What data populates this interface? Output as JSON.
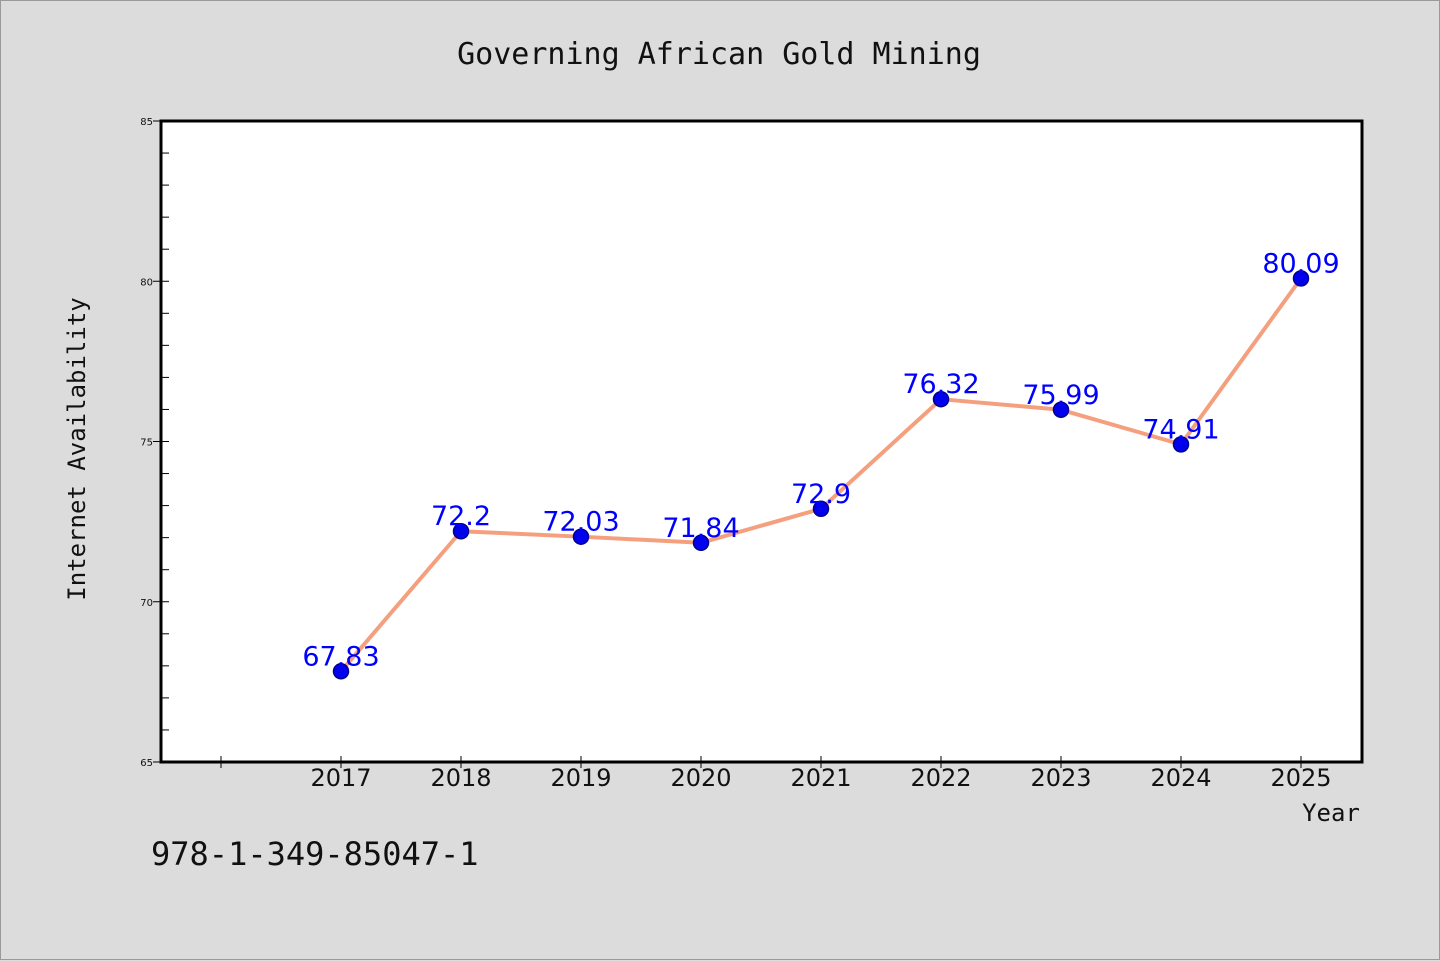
{
  "chart_data": {
    "type": "line",
    "title": "Governing African Gold Mining",
    "xlabel": "Year",
    "ylabel": "Internet Availability",
    "categories": [
      "2017",
      "2018",
      "2019",
      "2020",
      "2021",
      "2022",
      "2023",
      "2024",
      "2025"
    ],
    "series": [
      {
        "values": [
          67.83,
          72.2,
          72.03,
          71.84,
          72.9,
          76.32,
          75.99,
          74.91,
          80.09
        ]
      }
    ],
    "data_labels": [
      "67.83",
      "72.2",
      "72.03",
      "71.84",
      "72.9",
      "76.32",
      "75.99",
      "74.91",
      "80.09"
    ],
    "ylim": [
      65,
      85
    ],
    "yticks": [
      "65",
      "70",
      "75",
      "80",
      "85"
    ],
    "grid": false,
    "legend": "none",
    "colors": {
      "line": "#f4a07e",
      "marker": "#0000ee",
      "marker_edge": "#00008b",
      "data_label": "#0000ff",
      "plot_background": "#ffffff",
      "figure_background": "#dcdcdc"
    }
  },
  "footer": {
    "isbn": "978-1-349-85047-1"
  }
}
